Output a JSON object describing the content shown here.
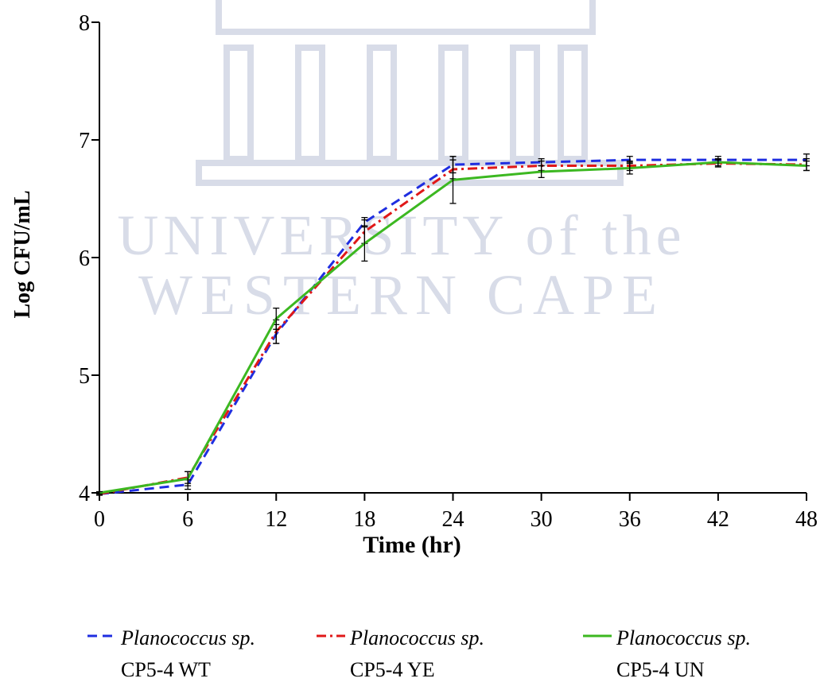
{
  "chart_data": {
    "type": "line",
    "watermark": [
      "UNIVERSITY of the",
      "WESTERN CAPE"
    ],
    "x_label": "Time (hr)",
    "y_label": "Log CFU/mL",
    "x": [
      0,
      6,
      12,
      18,
      24,
      30,
      36,
      42,
      48
    ],
    "xlim": [
      0,
      48
    ],
    "xticks": [
      0,
      6,
      12,
      18,
      24,
      30,
      36,
      42,
      48
    ],
    "ylim": [
      4,
      8
    ],
    "yticks": [
      4,
      5,
      6,
      7,
      8
    ],
    "series": [
      {
        "name": "Planococcus sp. CP5-4 WT",
        "color": "#1f2ee0",
        "dash": "12,7",
        "values": [
          3.99,
          4.07,
          5.35,
          6.3,
          6.79,
          6.81,
          6.83,
          6.83,
          6.83
        ],
        "errors": [
          0.01,
          0.04,
          0.08,
          0.04,
          0.07,
          0.03,
          0.03,
          0.03,
          0.05
        ]
      },
      {
        "name": "Planococcus sp. CP5-4 YE",
        "color": "#e01818",
        "dash": "12,5,3,5",
        "values": [
          3.99,
          4.13,
          5.37,
          6.22,
          6.75,
          6.78,
          6.78,
          6.8,
          6.79
        ],
        "errors": [
          0.01,
          0.05,
          0.1,
          0.1,
          0.08,
          0.04,
          0.04,
          0.03,
          0.05
        ]
      },
      {
        "name": "Planococcus sp. CP5-4 UN",
        "color": "#3cb821",
        "dash": "",
        "values": [
          4.0,
          4.12,
          5.48,
          6.12,
          6.66,
          6.73,
          6.76,
          6.81,
          6.78
        ],
        "errors": [
          0.01,
          0.06,
          0.09,
          0.15,
          0.2,
          0.05,
          0.05,
          0.03,
          0.04
        ]
      }
    ]
  }
}
